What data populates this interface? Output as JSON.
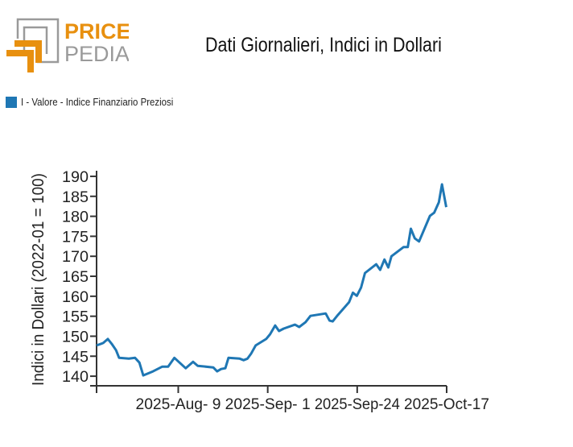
{
  "logo": {
    "word1": "PRICE",
    "word2": "PEDIA",
    "orange": "#E8900F",
    "gray": "#9A9A9A"
  },
  "chart_data": {
    "type": "line",
    "title": "Dati Giornalieri, Indici in Dollari",
    "xlabel": "",
    "ylabel": "Indici in Dollari (2022-01 = 100)",
    "legend_position": "top-left",
    "grid": false,
    "x_units": "days from series start",
    "xlim": [
      0,
      90
    ],
    "ylim": [
      137.6,
      191.4
    ],
    "yticks": [
      140,
      145,
      150,
      155,
      160,
      165,
      170,
      175,
      180,
      185,
      190
    ],
    "xticks": [
      {
        "x": 0,
        "label": ""
      },
      {
        "x": 21,
        "label": "2025-Aug- 9"
      },
      {
        "x": 44,
        "label": "2025-Sep- 1"
      },
      {
        "x": 67,
        "label": "2025-Sep-24"
      },
      {
        "x": 90,
        "label": "2025-Oct-17"
      }
    ],
    "series": [
      {
        "name": "I - Valore - Indice Finanziario Preziosi",
        "color": "#1F77B4",
        "x": [
          0,
          1.7,
          2.9,
          3.9,
          5.0,
          5.8,
          8.3,
          9.9,
          11.0,
          12.0,
          14.5,
          16.9,
          18.4,
          20.0,
          22.9,
          24.8,
          26.0,
          30.0,
          31.0,
          32.0,
          33.1,
          33.9,
          36.8,
          37.8,
          38.8,
          39.7,
          40.9,
          43.6,
          44.6,
          45.9,
          46.9,
          48.1,
          51.0,
          52.1,
          53.7,
          55.0,
          58.9,
          59.9,
          60.7,
          62.0,
          64.9,
          65.9,
          66.9,
          68.0,
          69.0,
          71.9,
          72.9,
          74.0,
          75.0,
          75.8,
          78.9,
          80.0,
          80.8,
          81.8,
          82.9,
          85.7,
          86.8,
          88.0,
          88.8,
          89.9
        ],
        "y": [
          147.7,
          148.3,
          149.3,
          148.1,
          146.5,
          144.6,
          144.4,
          144.6,
          143.4,
          140.2,
          141.2,
          142.4,
          142.4,
          144.6,
          142.0,
          143.6,
          142.6,
          142.2,
          141.2,
          141.8,
          142.0,
          144.6,
          144.4,
          144.0,
          144.4,
          145.6,
          147.7,
          149.3,
          150.5,
          152.7,
          151.3,
          151.9,
          152.9,
          152.3,
          153.5,
          155.1,
          155.7,
          153.9,
          153.7,
          155.3,
          158.5,
          160.9,
          160.1,
          162.2,
          165.8,
          168.0,
          166.6,
          169.2,
          167.2,
          170.0,
          172.3,
          172.3,
          176.9,
          174.5,
          173.7,
          180.1,
          180.9,
          183.5,
          188.0,
          182.3
        ]
      }
    ]
  }
}
